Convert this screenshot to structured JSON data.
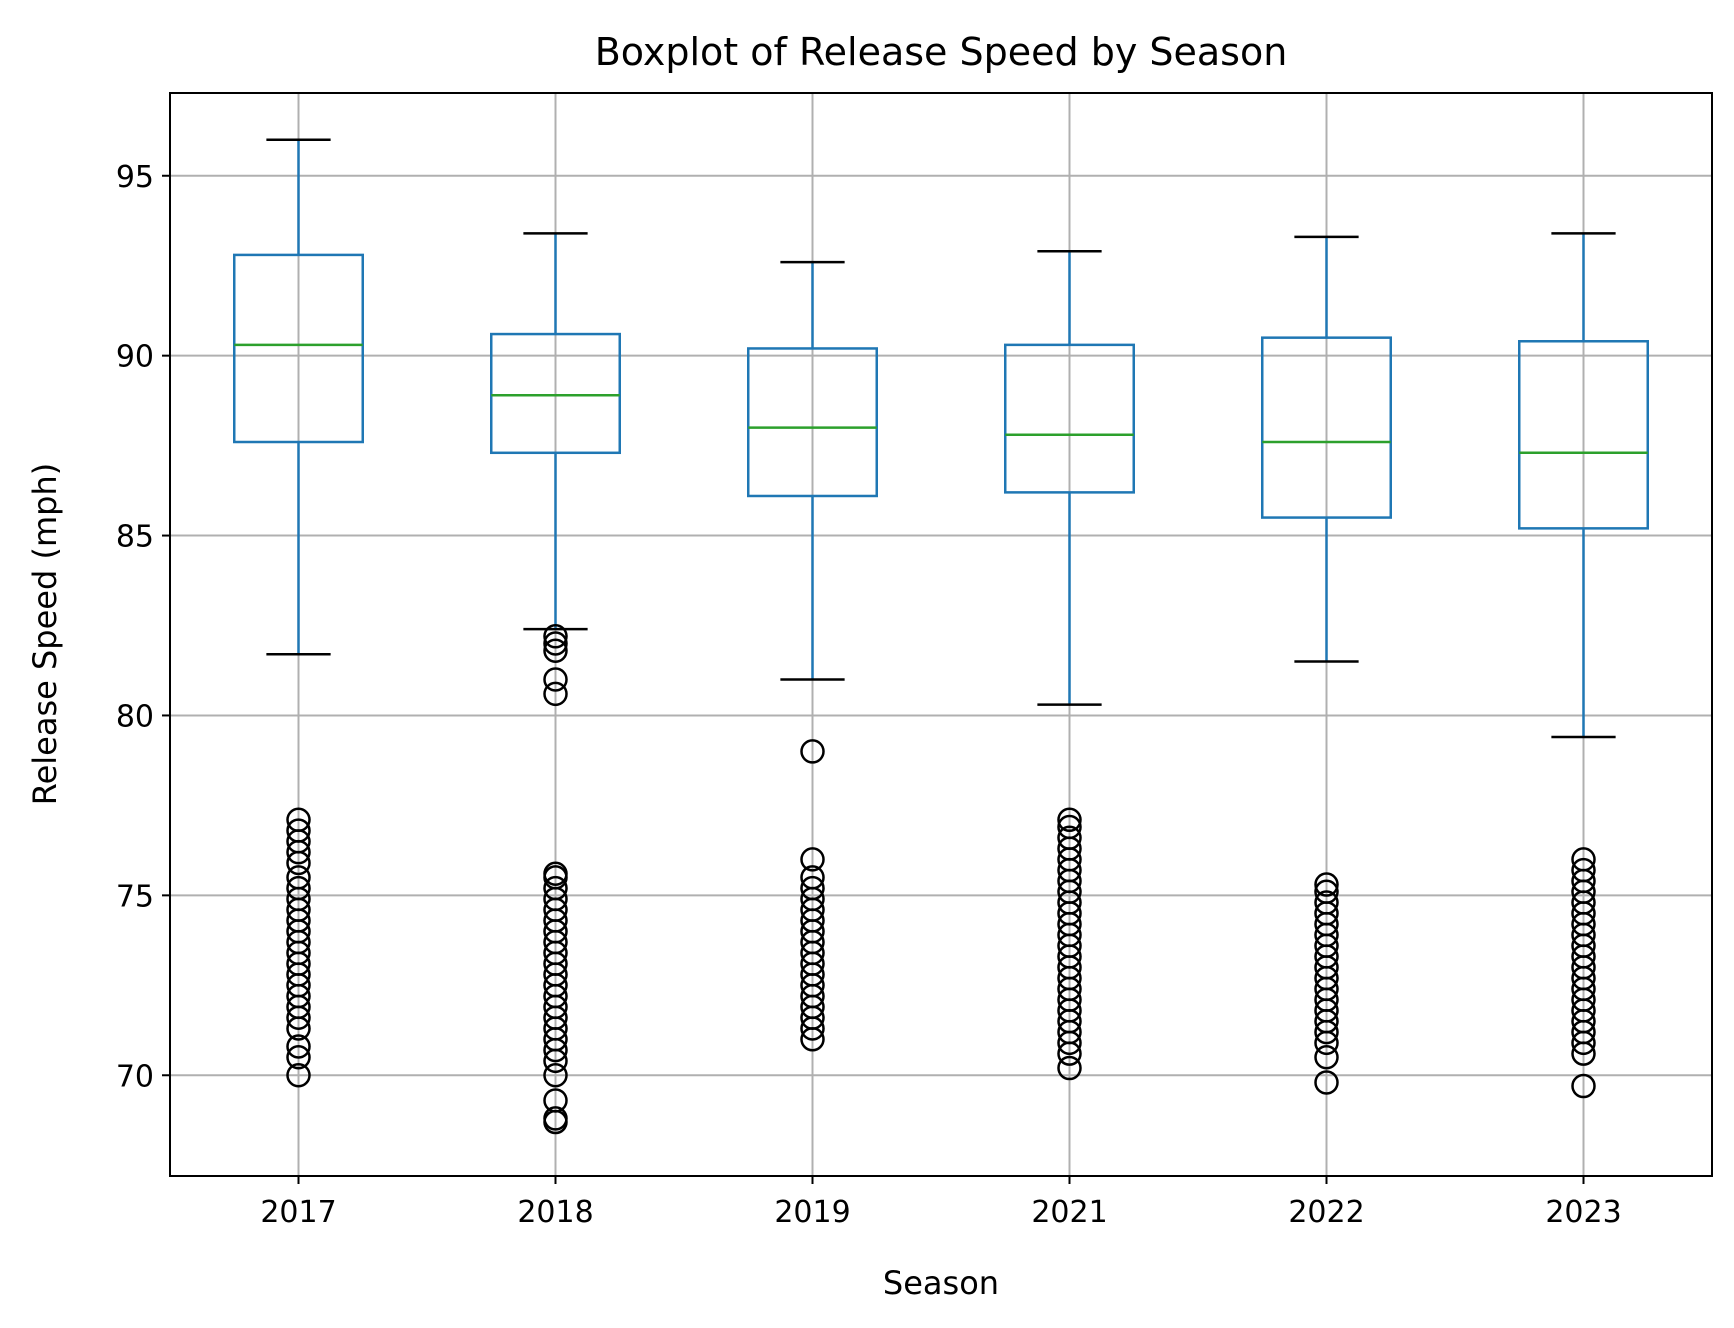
{
  "chart_data": {
    "type": "boxplot",
    "title": "Boxplot of Release Speed by Season",
    "xlabel": "Season",
    "ylabel": "Release Speed (mph)",
    "categories": [
      "2017",
      "2018",
      "2019",
      "2021",
      "2022",
      "2023"
    ],
    "yticks": [
      70,
      75,
      80,
      85,
      90,
      95
    ],
    "ylim": [
      67.2,
      97.3
    ],
    "grid": true,
    "colors": {
      "box": "#1f77b4",
      "median": "#2ca02c",
      "cap": "#000000",
      "flier": "#000000",
      "grid": "#b0b0b0"
    },
    "boxes": [
      {
        "season": "2017",
        "whisker_low": 81.7,
        "q1": 87.6,
        "median": 90.3,
        "q3": 92.8,
        "whisker_high": 96.0,
        "outliers": [
          70.0,
          70.5,
          70.8,
          71.3,
          71.6,
          71.9,
          72.2,
          72.5,
          72.8,
          73.1,
          73.4,
          73.7,
          74.0,
          74.3,
          74.6,
          74.9,
          75.2,
          75.5,
          75.9,
          76.2,
          76.5,
          76.8,
          77.1
        ]
      },
      {
        "season": "2018",
        "whisker_low": 82.4,
        "q1": 87.3,
        "median": 88.9,
        "q3": 90.6,
        "whisker_high": 93.4,
        "outliers": [
          68.7,
          68.8,
          69.3,
          70.0,
          70.4,
          70.7,
          71.0,
          71.3,
          71.6,
          71.9,
          72.2,
          72.5,
          72.8,
          73.1,
          73.4,
          73.7,
          74.0,
          74.3,
          74.6,
          74.9,
          75.2,
          75.5,
          75.6,
          80.6,
          81.0,
          81.8,
          82.0,
          82.2
        ]
      },
      {
        "season": "2019",
        "whisker_low": 81.0,
        "q1": 86.1,
        "median": 88.0,
        "q3": 90.2,
        "whisker_high": 92.6,
        "outliers": [
          71.0,
          71.3,
          71.6,
          71.9,
          72.2,
          72.5,
          72.8,
          73.1,
          73.4,
          73.7,
          74.0,
          74.3,
          74.6,
          74.9,
          75.2,
          75.5,
          76.0,
          79.0
        ]
      },
      {
        "season": "2021",
        "whisker_low": 80.3,
        "q1": 86.2,
        "median": 87.8,
        "q3": 90.3,
        "whisker_high": 92.9,
        "outliers": [
          70.2,
          70.6,
          70.9,
          71.2,
          71.5,
          71.8,
          72.1,
          72.4,
          72.7,
          73.0,
          73.3,
          73.6,
          73.9,
          74.2,
          74.5,
          74.8,
          75.1,
          75.4,
          75.7,
          76.0,
          76.3,
          76.6,
          76.9,
          77.1
        ]
      },
      {
        "season": "2022",
        "whisker_low": 81.5,
        "q1": 85.5,
        "median": 87.6,
        "q3": 90.5,
        "whisker_high": 93.3,
        "outliers": [
          69.8,
          70.5,
          70.9,
          71.2,
          71.5,
          71.8,
          72.1,
          72.4,
          72.7,
          73.0,
          73.3,
          73.6,
          73.9,
          74.2,
          74.5,
          74.8,
          75.1,
          75.3
        ]
      },
      {
        "season": "2023",
        "whisker_low": 79.4,
        "q1": 85.2,
        "median": 87.3,
        "q3": 90.4,
        "whisker_high": 93.4,
        "outliers": [
          69.7,
          70.6,
          70.9,
          71.2,
          71.5,
          71.8,
          72.1,
          72.4,
          72.7,
          73.0,
          73.3,
          73.6,
          73.9,
          74.2,
          74.5,
          74.8,
          75.1,
          75.4,
          75.7,
          76.0
        ]
      }
    ]
  }
}
